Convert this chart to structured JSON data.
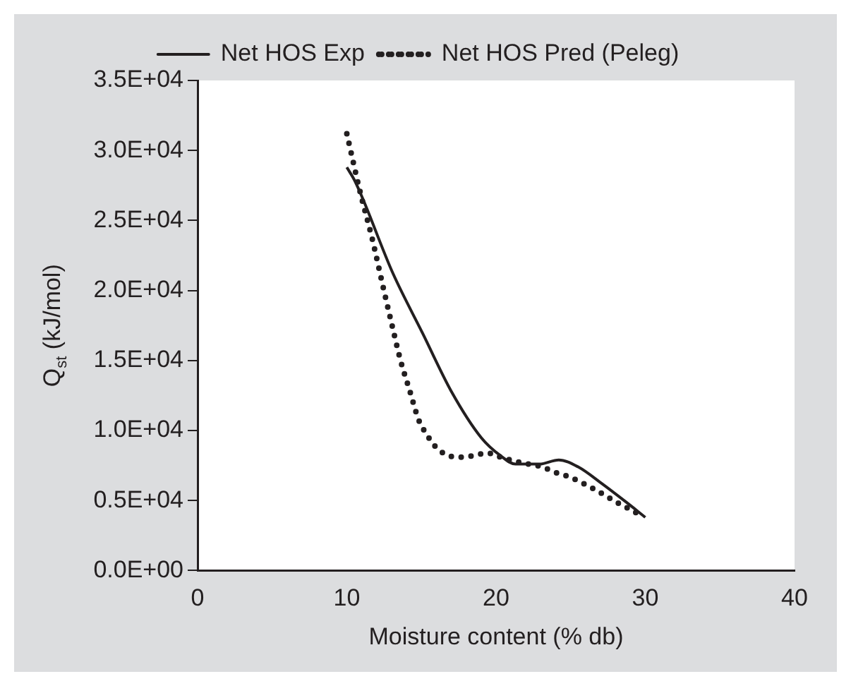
{
  "chart_data": {
    "type": "line",
    "xlabel": "Moisture content (% db)",
    "ylabel": "Q$_{st}$ (kJ/mol)",
    "xlim": [
      0,
      40
    ],
    "xticks": [
      0,
      10,
      20,
      30,
      40
    ],
    "ylim": [
      0,
      35000
    ],
    "yticks": [
      {
        "value": 0,
        "label": "0.0E+00"
      },
      {
        "value": 5000,
        "label": "0.5E+04"
      },
      {
        "value": 10000,
        "label": "1.0E+04"
      },
      {
        "value": 15000,
        "label": "1.5E+04"
      },
      {
        "value": 20000,
        "label": "2.0E+04"
      },
      {
        "value": 25000,
        "label": "2.5E+04"
      },
      {
        "value": 30000,
        "label": "3.0E+04"
      },
      {
        "value": 35000,
        "label": "3.5E+04"
      }
    ],
    "grid": false,
    "legend": "top",
    "series": [
      {
        "name": "Net HOS Exp",
        "color": "#231f20",
        "line_style": "solid",
        "x": [
          10,
          10.55,
          13.1,
          15.1,
          17.0,
          19.0,
          20.3,
          21.3,
          22.9,
          24.2,
          25.5,
          27.1,
          28.7,
          30
        ],
        "values": [
          28800,
          27800,
          21200,
          16900,
          12800,
          9500,
          8200,
          7600,
          7600,
          7900,
          7400,
          6200,
          4900,
          3800
        ]
      },
      {
        "name": "Net HOS Pred (Peleg)",
        "color": "#231f20",
        "line_style": "dotted",
        "x": [
          10,
          10.9,
          11.7,
          12.4,
          13.1,
          13.6,
          14.2,
          14.8,
          15.3,
          15.9,
          16.6,
          17.6,
          18.5,
          19.4,
          20.3,
          21.3,
          22.2,
          23.1,
          24.0,
          24.9,
          25.7,
          26.6,
          27.4,
          28.2,
          29.1,
          29.9
        ],
        "values": [
          31200,
          27000,
          23700,
          20400,
          17200,
          15000,
          12900,
          10800,
          9800,
          8900,
          8300,
          8100,
          8200,
          8400,
          8100,
          7800,
          7600,
          7400,
          7000,
          6700,
          6300,
          5800,
          5300,
          4800,
          4300,
          3800
        ]
      }
    ]
  }
}
